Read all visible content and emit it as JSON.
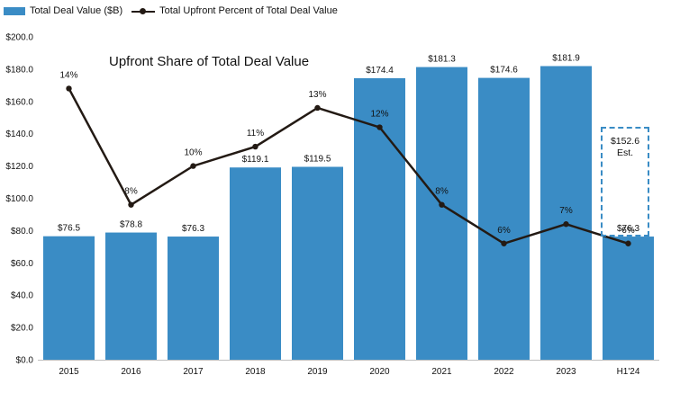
{
  "legend": {
    "bar_label": "Total Deal Value ($B)",
    "line_label": "Total Upfront Percent of Total Deal Value"
  },
  "colors": {
    "bar": "#3a8cc5",
    "line": "#231a14",
    "axis": "#bfbfbf"
  },
  "chart_data": {
    "type": "bar",
    "title": "Upfront Share of Total Deal Value",
    "categories": [
      "2015",
      "2016",
      "2017",
      "2018",
      "2019",
      "2020",
      "2021",
      "2022",
      "2023",
      "H1'24"
    ],
    "ylim": [
      0,
      200
    ],
    "yticks": [
      0,
      20,
      40,
      60,
      80,
      100,
      120,
      140,
      160,
      180,
      200
    ],
    "ytick_labels": [
      "$0.0",
      "$20.0",
      "$40.0",
      "$60.0",
      "$80.0",
      "$100.0",
      "$120.0",
      "$140.0",
      "$160.0",
      "$180.0",
      "$200.0"
    ],
    "series": [
      {
        "name": "Total Deal Value ($B)",
        "type": "bar",
        "values": [
          76.5,
          78.8,
          76.3,
          119.1,
          119.5,
          174.4,
          181.3,
          174.6,
          181.9,
          76.3
        ],
        "labels": [
          "$76.5",
          "$78.8",
          "$76.3",
          "$119.1",
          "$119.5",
          "$174.4",
          "$181.3",
          "$174.6",
          "$181.9",
          "$76.3"
        ]
      },
      {
        "name": "Total Upfront Percent of Total Deal Value",
        "type": "line",
        "values": [
          14,
          8,
          10,
          11,
          13,
          12,
          8,
          6,
          7,
          6
        ],
        "labels": [
          "14%",
          "8%",
          "10%",
          "11%",
          "13%",
          "12%",
          "8%",
          "6%",
          "7%",
          "6%"
        ]
      }
    ],
    "estimate": {
      "category": "H1'24",
      "value": 152.6,
      "value_label": "$152.6",
      "note": "Est."
    }
  }
}
